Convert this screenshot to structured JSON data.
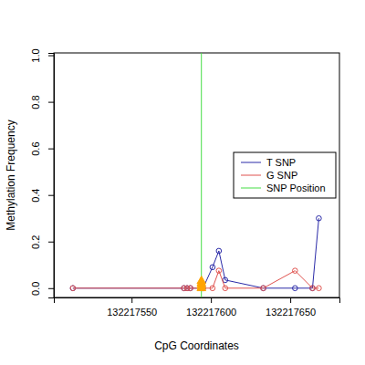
{
  "chart_data": {
    "type": "line",
    "x_label": "CpG Coordinates",
    "y_label": "Methylation Frequency",
    "xlim": [
      132217501,
      132217681
    ],
    "xticks": [
      132217550,
      132217600,
      132217650
    ],
    "ylim": [
      -0.04,
      1.01
    ],
    "yticks": [
      {
        "value": 0,
        "label": "0.0"
      },
      {
        "value": 0.2,
        "label": "0.2"
      },
      {
        "value": 0.4,
        "label": "0.4"
      },
      {
        "value": 0.6,
        "label": "0.6"
      },
      {
        "value": 0.8,
        "label": "0.8"
      },
      {
        "value": 1,
        "label": "1.0"
      }
    ],
    "legend": "right",
    "grid": false,
    "series": [
      {
        "name": "T SNP",
        "type": "line",
        "color": "#2a2aa8",
        "marker": "circle",
        "line_style": "solid",
        "x": [
          132217513,
          132217583,
          132217585,
          132217587,
          132217595,
          132217601,
          132217605,
          132217609,
          132217633,
          132217653,
          132217664,
          132217668
        ],
        "values": [
          0,
          0,
          0,
          0,
          0,
          0.09,
          0.16,
          0.035,
          0,
          0,
          0,
          0.3
        ]
      },
      {
        "name": "G SNP",
        "type": "line",
        "color": "#e0534f",
        "marker": "circle",
        "line_style": "solid",
        "x": [
          132217513,
          132217583,
          132217585,
          132217587,
          132217595,
          132217601,
          132217605,
          132217609,
          132217633,
          132217653,
          132217664,
          132217668
        ],
        "values": [
          0,
          0,
          0,
          0,
          0,
          0,
          0.075,
          0,
          0,
          0.075,
          0,
          0
        ]
      },
      {
        "name": "SNP Position",
        "type": "vline",
        "color": "#44dd44",
        "line_style": "solid",
        "x": [
          132217594
        ]
      },
      {
        "type": "scatter",
        "color": "#ffa500",
        "marker": "triangle",
        "line_style": "none",
        "x": [
          132217594,
          132217594,
          132217594,
          132217594
        ],
        "values": [
          0,
          0.01,
          0.02,
          0.03
        ]
      }
    ]
  }
}
